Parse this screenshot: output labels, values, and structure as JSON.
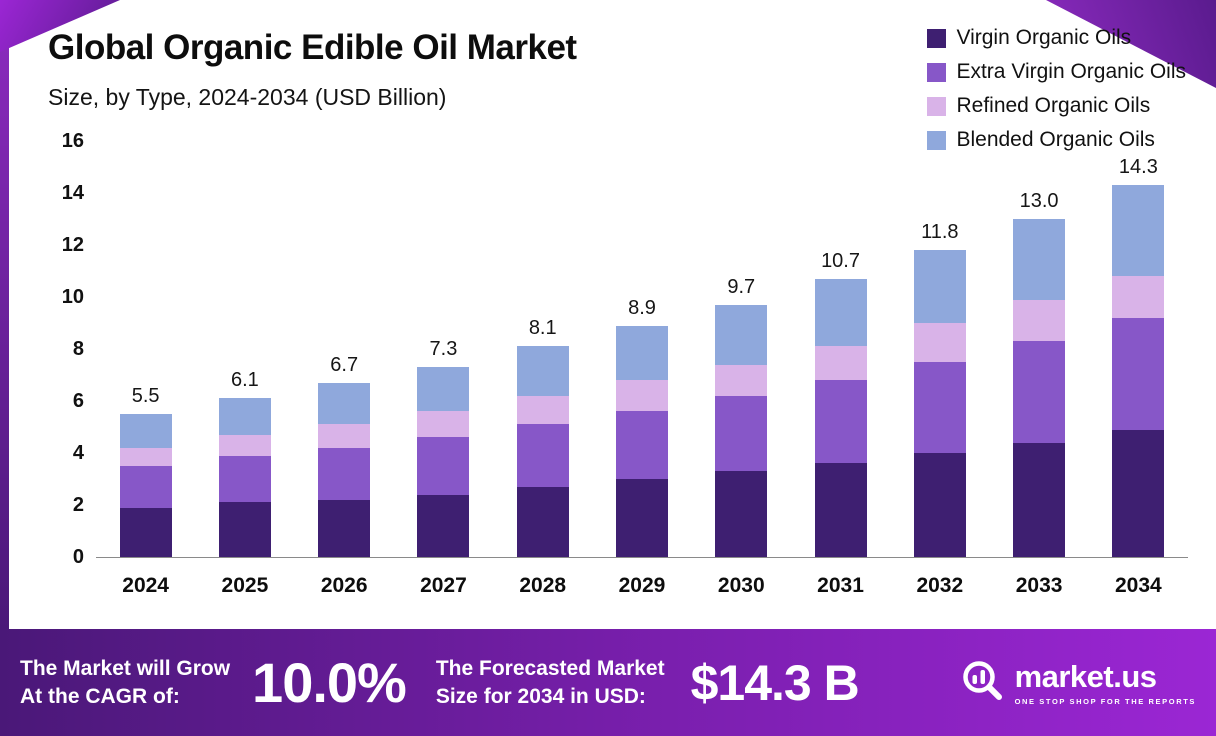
{
  "header": {
    "title": "Global Organic Edible Oil Market",
    "subtitle": "Size, by Type, 2024-2034 (USD Billion)"
  },
  "chart_data": {
    "type": "bar",
    "stacked": true,
    "title": "Global Organic Edible Oil Market Size, by Type, 2024-2034 (USD Billion)",
    "xlabel": "",
    "ylabel": "USD Billion",
    "ylim": [
      0,
      16
    ],
    "yticks": [
      0,
      2,
      4,
      6,
      8,
      10,
      12,
      14,
      16
    ],
    "grid": false,
    "legend_position": "top-right",
    "categories": [
      "2024",
      "2025",
      "2026",
      "2027",
      "2028",
      "2029",
      "2030",
      "2031",
      "2032",
      "2033",
      "2034"
    ],
    "series": [
      {
        "name": "Virgin Organic Oils",
        "color": "#3e1f71",
        "values": [
          1.9,
          2.1,
          2.2,
          2.4,
          2.7,
          3.0,
          3.3,
          3.6,
          4.0,
          4.4,
          4.9
        ]
      },
      {
        "name": "Extra Virgin Organic Oils",
        "color": "#8757c8",
        "values": [
          1.6,
          1.8,
          2.0,
          2.2,
          2.4,
          2.6,
          2.9,
          3.2,
          3.5,
          3.9,
          4.3
        ]
      },
      {
        "name": "Refined Organic Oils",
        "color": "#d9b3e8",
        "values": [
          0.7,
          0.8,
          0.9,
          1.0,
          1.1,
          1.2,
          1.2,
          1.3,
          1.5,
          1.6,
          1.6
        ]
      },
      {
        "name": "Blended Organic Oils",
        "color": "#8fa8dc",
        "values": [
          1.3,
          1.4,
          1.6,
          1.7,
          1.9,
          2.1,
          2.3,
          2.6,
          2.8,
          3.1,
          3.5
        ]
      }
    ],
    "totals": [
      "5.5",
      "6.1",
      "6.7",
      "7.3",
      "8.1",
      "8.9",
      "9.7",
      "10.7",
      "11.8",
      "13.0",
      "14.3"
    ]
  },
  "banner": {
    "cagr_label_line1": "The Market will Grow",
    "cagr_label_line2": "At the CAGR of:",
    "cagr_value": "10.0%",
    "forecast_label_line1": "The Forecasted Market",
    "forecast_label_line2": "Size for 2034 in USD:",
    "forecast_value": "$14.3 B",
    "brand": "market.us",
    "brand_tagline": "ONE STOP SHOP FOR THE REPORTS"
  },
  "colors": {
    "accent_dark_purple": "#4a1878",
    "accent_purple": "#7a1fae",
    "accent_magenta_purple": "#9b26d4",
    "text": "#0d0d0d",
    "banner_text": "#ffffff"
  }
}
